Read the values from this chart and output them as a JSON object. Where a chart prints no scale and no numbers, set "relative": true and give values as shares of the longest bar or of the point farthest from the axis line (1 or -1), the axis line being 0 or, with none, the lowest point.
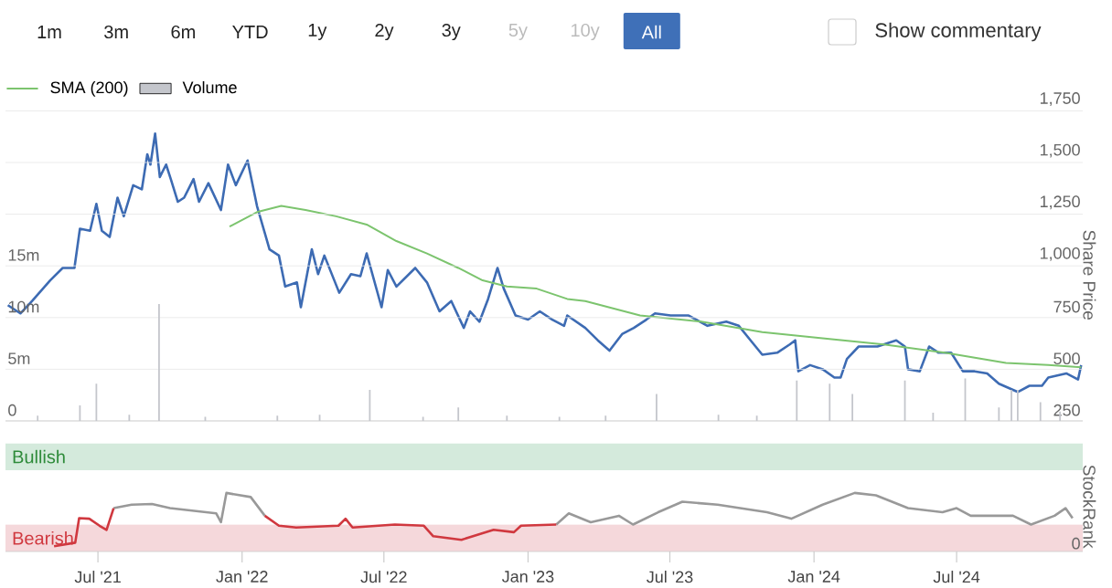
{
  "chart_data": [
    {
      "type": "line",
      "annotations": [
        "1m",
        "3m",
        "6m",
        "YTD",
        "1y",
        "2y",
        "3y",
        "5y",
        "10y",
        "All",
        "Show commentary"
      ],
      "ylabel": "Share Price",
      "xlim": [
        "2021-03-05",
        "2024-12-09"
      ],
      "ylim": [
        250,
        1750
      ],
      "yticks": [
        {
          "value": 250,
          "label": "250"
        },
        {
          "value": 500,
          "label": "500"
        },
        {
          "value": 750,
          "label": "750"
        },
        {
          "value": 1000,
          "label": "1,000"
        },
        {
          "value": 1250,
          "label": "1,250"
        },
        {
          "value": 1500,
          "label": "1,500"
        },
        {
          "value": 1750,
          "label": "1,750"
        }
      ],
      "y2lim": [
        0,
        30
      ],
      "y2ticks": [
        0,
        {
          "value": 5,
          "label": "5m"
        },
        {
          "value": 10,
          "label": "10m"
        },
        {
          "value": 15,
          "label": "15m"
        }
      ],
      "grid": "y",
      "legend": "top left",
      "tick_labels": "y",
      "series": [
        {
          "type": "line",
          "color": "#3d6bb3",
          "x": [
            "2021-03-08",
            "2021-03-24",
            "2021-04-08",
            "2021-05-01",
            "2021-05-17",
            "2021-06-01",
            "2021-06-08",
            "2021-06-21",
            "2021-06-29",
            "2021-07-06",
            "2021-07-16",
            "2021-07-26",
            "2021-08-03",
            "2021-08-15",
            "2021-08-26",
            "2021-09-02",
            "2021-09-06",
            "2021-09-12",
            "2021-09-18",
            "2021-09-26",
            "2021-10-02",
            "2021-10-11",
            "2021-10-19",
            "2021-10-31",
            "2021-11-07",
            "2021-11-19",
            "2021-12-05",
            "2021-12-14",
            "2021-12-24",
            "2022-01-08",
            "2022-01-20",
            "2022-02-05",
            "2022-02-17",
            "2022-02-25",
            "2022-03-12",
            "2022-03-17",
            "2022-03-31",
            "2022-04-08",
            "2022-04-16",
            "2022-05-05",
            "2022-05-20",
            "2022-06-01",
            "2022-06-09",
            "2022-06-28",
            "2022-07-06",
            "2022-07-17",
            "2022-08-10",
            "2022-08-25",
            "2022-09-10",
            "2022-09-25",
            "2022-10-11",
            "2022-10-19",
            "2022-10-31",
            "2022-11-11",
            "2022-11-23",
            "2022-12-01",
            "2022-12-16",
            "2023-01-01",
            "2023-01-16",
            "2023-02-01",
            "2023-02-16",
            "2023-02-20",
            "2023-03-15",
            "2023-03-31",
            "2023-04-15",
            "2023-05-01",
            "2023-05-16",
            "2023-06-01",
            "2023-06-12",
            "2023-07-02",
            "2023-07-25",
            "2023-08-18",
            "2023-09-11",
            "2023-09-27",
            "2023-10-12",
            "2023-10-27",
            "2023-11-15",
            "2023-12-01",
            "2023-12-08",
            "2023-12-12",
            "2023-12-27",
            "2024-01-12",
            "2024-01-27",
            "2024-02-04",
            "2024-02-12",
            "2024-02-27",
            "2024-03-22",
            "2024-04-15",
            "2024-04-26",
            "2024-04-30",
            "2024-05-15",
            "2024-05-27",
            "2024-06-08",
            "2024-06-24",
            "2024-07-09",
            "2024-07-24",
            "2024-08-09",
            "2024-08-24",
            "2024-09-17",
            "2024-10-02",
            "2024-10-18",
            "2024-10-26",
            "2024-11-18",
            "2024-12-03",
            "2024-12-07"
          ],
          "values": [
            810,
            770,
            830,
            930,
            990,
            990,
            1180,
            1170,
            1300,
            1170,
            1140,
            1330,
            1240,
            1390,
            1370,
            1540,
            1490,
            1640,
            1430,
            1490,
            1420,
            1310,
            1330,
            1420,
            1310,
            1400,
            1270,
            1490,
            1390,
            1510,
            1290,
            1080,
            1050,
            900,
            920,
            800,
            1080,
            960,
            1050,
            870,
            960,
            950,
            1060,
            800,
            980,
            900,
            990,
            920,
            780,
            830,
            700,
            780,
            730,
            840,
            990,
            890,
            760,
            740,
            780,
            740,
            710,
            760,
            700,
            640,
            590,
            670,
            700,
            740,
            770,
            760,
            760,
            710,
            730,
            710,
            640,
            570,
            580,
            620,
            640,
            490,
            520,
            500,
            460,
            460,
            550,
            610,
            610,
            640,
            610,
            500,
            490,
            610,
            580,
            580,
            490,
            490,
            480,
            430,
            390,
            420,
            420,
            460,
            480,
            450,
            520
          ]
        },
        {
          "type": "line",
          "name": "SMA (200)",
          "color": "#7cc46e",
          "x": [
            "2021-12-16",
            "2022-01-20",
            "2022-02-20",
            "2022-03-23",
            "2022-05-01",
            "2022-06-09",
            "2022-07-17",
            "2022-08-25",
            "2022-10-04",
            "2022-11-04",
            "2022-12-05",
            "2023-01-12",
            "2023-02-20",
            "2023-03-15",
            "2023-05-24",
            "2023-08-10",
            "2023-10-27",
            "2024-01-12",
            "2024-03-30",
            "2024-06-16",
            "2024-09-02",
            "2024-10-26",
            "2024-12-07"
          ],
          "values": [
            1190,
            1260,
            1290,
            1270,
            1240,
            1200,
            1120,
            1060,
            990,
            930,
            900,
            890,
            840,
            830,
            760,
            730,
            680,
            650,
            620,
            580,
            530,
            520,
            510
          ]
        },
        {
          "type": "bar",
          "name": "Volume",
          "color": "#c4c6cc",
          "axis": "y2",
          "x": [
            "2021-04-15",
            "2021-06-08",
            "2021-06-29",
            "2021-08-10",
            "2021-09-17",
            "2021-11-15",
            "2022-02-15",
            "2022-04-10",
            "2022-06-13",
            "2022-08-20",
            "2022-10-04",
            "2022-12-05",
            "2023-02-10",
            "2023-04-10",
            "2023-06-14",
            "2023-09-01",
            "2023-10-20",
            "2023-12-10",
            "2024-01-21",
            "2024-02-19",
            "2024-04-26",
            "2024-06-01",
            "2024-07-12",
            "2024-08-24",
            "2024-09-09",
            "2024-09-17",
            "2024-10-16",
            "2024-11-10"
          ],
          "values": [
            0.5,
            1.5,
            3.6,
            0.6,
            11.3,
            0.4,
            0.5,
            0.6,
            3.0,
            0.4,
            1.3,
            0.5,
            0.4,
            0.5,
            2.6,
            0.6,
            0.5,
            3.9,
            3.6,
            2.6,
            3.9,
            0.8,
            4.1,
            1.3,
            3.0,
            3.0,
            1.8,
            0.9
          ]
        }
      ]
    },
    {
      "type": "line",
      "relative": true,
      "ylabel": "StockRank",
      "annotations": [
        "0"
      ],
      "xlim": [
        "2021-03-05",
        "2024-12-09"
      ],
      "xticks": [
        {
          "value": "2021-07-01",
          "label": "Jul '21"
        },
        {
          "value": "2022-01-01",
          "label": "Jan '22"
        },
        {
          "value": "2022-07-01",
          "label": "Jul '22"
        },
        {
          "value": "2023-01-01",
          "label": "Jan '23"
        },
        {
          "value": "2023-07-01",
          "label": "Jul '23"
        },
        {
          "value": "2024-01-01",
          "label": "Jan '24"
        },
        {
          "value": "2024-07-01",
          "label": "Jul '24"
        }
      ],
      "bands": [
        {
          "axis": "y",
          "from": 1.39,
          "to": 1.85,
          "label": "Bullish",
          "color": "#d4eadc"
        },
        {
          "axis": "y",
          "from": 0,
          "to": 0.46,
          "label": "Bearish",
          "color": "#f5d8db"
        }
      ],
      "x": [
        "2021-05-06",
        "2021-06-02",
        "2021-06-07",
        "2021-06-20",
        "2021-07-03",
        "2021-07-12",
        "2021-07-21",
        "2021-08-13",
        "2021-09-08",
        "2021-10-01",
        "2021-11-29",
        "2021-12-05",
        "2021-12-12",
        "2022-01-12",
        "2022-01-30",
        "2022-02-17",
        "2022-03-11",
        "2022-05-04",
        "2022-05-13",
        "2022-05-22",
        "2022-07-15",
        "2022-08-21",
        "2022-09-02",
        "2022-10-08",
        "2022-11-18",
        "2022-12-14",
        "2022-12-23",
        "2023-02-06",
        "2023-02-22",
        "2023-03-22",
        "2023-04-27",
        "2023-05-15",
        "2023-06-16",
        "2023-07-17",
        "2023-08-31",
        "2023-11-02",
        "2023-12-03",
        "2024-01-12",
        "2024-02-22",
        "2024-03-20",
        "2024-04-30",
        "2024-06-13",
        "2024-07-01",
        "2024-07-19",
        "2024-09-11",
        "2024-10-04",
        "2024-11-03",
        "2024-11-17",
        "2024-11-26"
      ],
      "series": [
        {
          "color": "#999999",
          "values": [
            null,
            null,
            null,
            null,
            null,
            null,
            0.74,
            0.8,
            0.81,
            0.74,
            0.65,
            0.5,
            1,
            0.93,
            0.61,
            null,
            null,
            null,
            null,
            null,
            null,
            null,
            null,
            null,
            null,
            null,
            null,
            0.46,
            0.65,
            0.5,
            0.61,
            0.46,
            0.67,
            0.85,
            0.8,
            0.67,
            0.56,
            0.8,
            1,
            0.96,
            0.74,
            0.67,
            0.74,
            0.61,
            0.61,
            0.46,
            0.61,
            0.74,
            0.57
          ]
        },
        {
          "color": "#d0383f",
          "values": [
            0.09,
            0.15,
            0.57,
            0.56,
            0.44,
            0.37,
            0.74,
            null,
            null,
            null,
            null,
            null,
            null,
            null,
            0.61,
            0.44,
            0.41,
            0.44,
            0.56,
            0.41,
            0.46,
            0.44,
            0.26,
            0.2,
            0.37,
            0.33,
            0.44,
            0.46,
            null,
            null,
            null,
            null,
            null,
            null,
            null,
            null,
            null,
            null,
            null,
            null,
            null,
            null,
            null,
            null,
            null,
            null,
            null,
            null,
            null
          ]
        }
      ]
    }
  ]
}
